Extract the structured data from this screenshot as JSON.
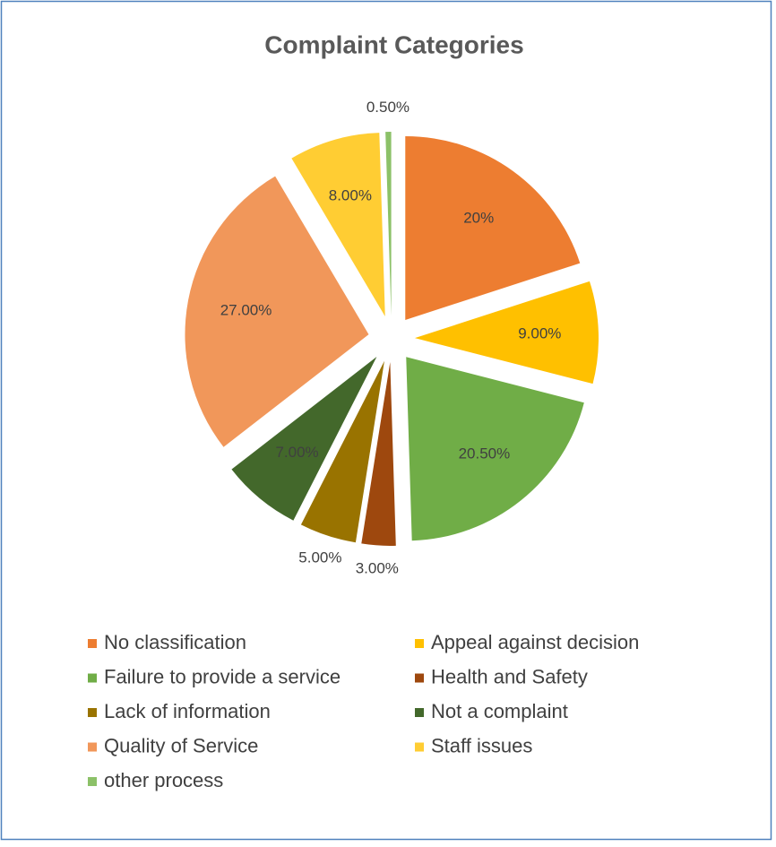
{
  "chart_data": {
    "type": "pie",
    "title": "Complaint Categories",
    "categories": [
      "No classification",
      "Appeal against decision",
      "Failure to provide a service",
      "Health and Safety",
      "Lack of information",
      "Not a complaint",
      "Quality of Service",
      "Staff issues",
      "other process"
    ],
    "values": [
      20,
      9,
      20.5,
      3,
      5,
      7,
      27,
      8,
      0.5
    ],
    "value_labels": [
      "20%",
      "9.00%",
      "20.50%",
      "3.00%",
      "5.00%",
      "7.00%",
      "27.00%",
      "8.00%",
      "0.50%"
    ],
    "colors": [
      "#ed7d31",
      "#ffc000",
      "#70ad47",
      "#9e480e",
      "#997300",
      "#43682b",
      "#f1975a",
      "#ffcd33",
      "#8cc168"
    ],
    "legend": "bottom"
  }
}
